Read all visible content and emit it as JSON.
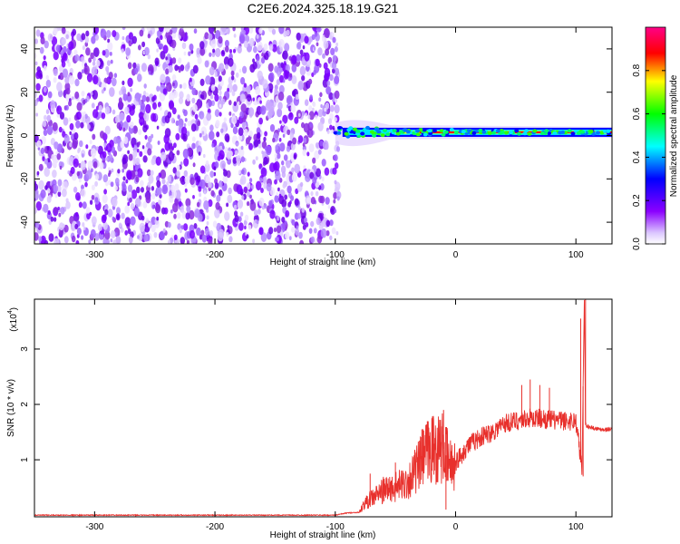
{
  "chart_data": [
    {
      "type": "heatmap",
      "title": "C2E6.2024.325.18.19.G21",
      "xlabel": "Height of straight line (km)",
      "ylabel": "Frequency (Hz)",
      "xlim": [
        -350,
        130
      ],
      "ylim": [
        -50,
        50
      ],
      "xticks": [
        -300,
        -200,
        -100,
        0,
        100
      ],
      "yticks": [
        -40,
        -20,
        0,
        20,
        40
      ],
      "noise_region_x": [
        -350,
        -97
      ],
      "signal_center_hz": 1.5,
      "colorbar": {
        "label": "Normalized spectral amplitude",
        "range": [
          0,
          1
        ],
        "ticks": [
          0.0,
          0.2,
          0.4,
          0.6,
          0.8
        ],
        "colors": [
          "#ffffff",
          "#dcc8ff",
          "#8b00ff",
          "#0000ff",
          "#00ffff",
          "#00ff00",
          "#ffff00",
          "#ff0000",
          "#ff0088"
        ]
      }
    },
    {
      "type": "line",
      "xlabel": "Height of straight line (km)",
      "ylabel": "SNR (10 * v/v)",
      "y_multiplier": "(x10",
      "y_multiplier_exp": "4",
      "xlim": [
        -350,
        130
      ],
      "ylim": [
        -0.03,
        3.9
      ],
      "xticks": [
        -300,
        -200,
        -100,
        0,
        100
      ],
      "yticks": [
        1,
        2,
        3
      ],
      "color": "#e8302c",
      "series": [
        {
          "x": [
            -350,
            -100,
            -90,
            -80,
            -76,
            -70,
            -60,
            -50,
            -40,
            -30,
            -25,
            -20,
            -10,
            -5,
            0,
            5,
            10,
            20,
            30,
            40,
            50,
            60,
            70,
            80,
            90,
            100,
            103,
            105,
            107,
            108,
            110,
            120,
            130
          ],
          "y": [
            0.0,
            0.0,
            0.04,
            0.05,
            0.2,
            0.3,
            0.45,
            0.5,
            0.6,
            0.9,
            1.1,
            1.2,
            1.2,
            0.9,
            0.95,
            1.1,
            1.25,
            1.4,
            1.5,
            1.65,
            1.7,
            1.75,
            1.75,
            1.72,
            1.7,
            1.7,
            1.2,
            0.75,
            3.9,
            1.65,
            1.6,
            1.55,
            1.55
          ]
        }
      ],
      "spikes": [
        {
          "x": -71,
          "y": 0.75
        },
        {
          "x": -50,
          "y": 0.95
        },
        {
          "x": -28,
          "y": 1.55
        },
        {
          "x": -10,
          "y": 1.9
        },
        {
          "x": -8,
          "y": 0.1
        },
        {
          "x": 55,
          "y": 2.35
        },
        {
          "x": 62,
          "y": 2.45
        },
        {
          "x": 70,
          "y": 2.35
        },
        {
          "x": 78,
          "y": 2.3
        },
        {
          "x": 104,
          "y": 3.55
        },
        {
          "x": 106,
          "y": 0.7
        },
        {
          "x": 108,
          "y": 3.9
        }
      ]
    }
  ]
}
